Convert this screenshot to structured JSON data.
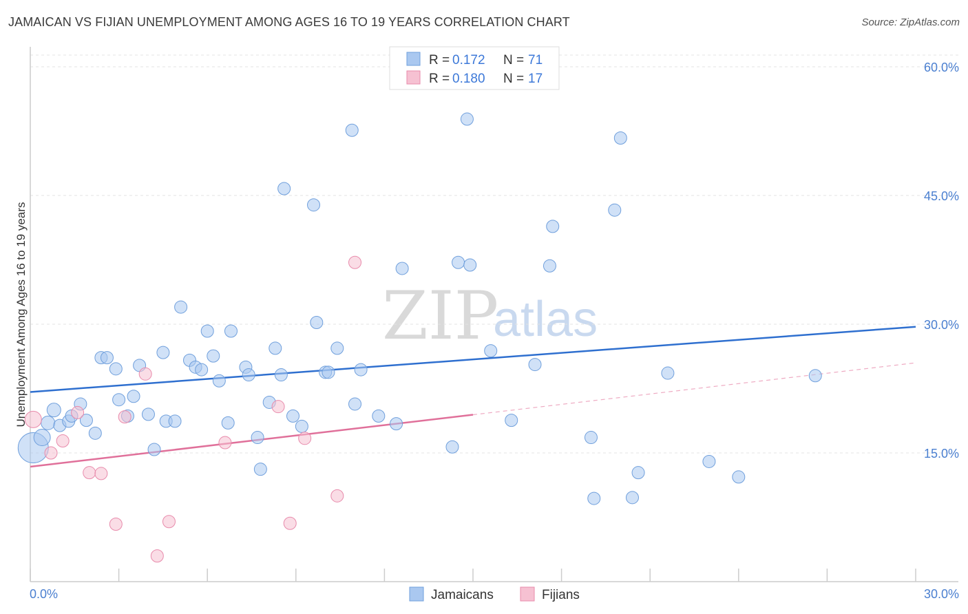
{
  "header": {
    "title": "JAMAICAN VS FIJIAN UNEMPLOYMENT AMONG AGES 16 TO 19 YEARS CORRELATION CHART",
    "source": "Source: ZipAtlas.com"
  },
  "watermark": {
    "zip": "ZIP",
    "atlas": "atlas"
  },
  "legend_top": {
    "rows": [
      {
        "r_label": "R =",
        "r_value": "0.172",
        "n_label": "N =",
        "n_value": "71",
        "color": "#aac8f0",
        "stroke": "#6f9fdc"
      },
      {
        "r_label": "R =",
        "r_value": "0.180",
        "n_label": "N =",
        "n_value": "17",
        "color": "#f6c1d2",
        "stroke": "#e88aab"
      }
    ]
  },
  "legend_bottom": {
    "items": [
      {
        "label": "Jamaicans",
        "color": "#aac8f0",
        "stroke": "#6f9fdc"
      },
      {
        "label": "Fijians",
        "color": "#f6c1d2",
        "stroke": "#e88aab"
      }
    ]
  },
  "chart_data": {
    "type": "scatter",
    "title": "JAMAICAN VS FIJIAN UNEMPLOYMENT AMONG AGES 16 TO 19 YEARS CORRELATION CHART",
    "xlabel": "",
    "ylabel": "Unemployment Among Ages 16 to 19 years",
    "xlim": [
      0,
      30
    ],
    "ylim": [
      0,
      60
    ],
    "x_tick_labels": [
      "0.0%",
      "30.0%"
    ],
    "y_ticks": [
      15,
      30,
      45,
      60
    ],
    "y_tick_labels": [
      "15.0%",
      "30.0%",
      "45.0%",
      "60.0%"
    ],
    "grid": true,
    "legend_placement": "top-center",
    "series": [
      {
        "name": "Jamaicans",
        "color": "#aac8f0",
        "stroke": "#6f9fdc",
        "trend": {
          "x": [
            0,
            30
          ],
          "y": [
            22.1,
            29.7
          ],
          "color": "#2e6fcf",
          "dashed_from": null
        },
        "points": [
          [
            0.1,
            15.6,
            22
          ],
          [
            0.4,
            16.8,
            12
          ],
          [
            0.6,
            18.5,
            10
          ],
          [
            0.8,
            20.0,
            10
          ],
          [
            1.0,
            18.2,
            9
          ],
          [
            1.3,
            18.7,
            9
          ],
          [
            1.4,
            19.3,
            9
          ],
          [
            1.7,
            20.7,
            9
          ],
          [
            1.9,
            18.8,
            9
          ],
          [
            2.2,
            17.3,
            9
          ],
          [
            2.4,
            26.1,
            9
          ],
          [
            2.6,
            26.1,
            9
          ],
          [
            2.9,
            24.8,
            9
          ],
          [
            3.0,
            21.2,
            9
          ],
          [
            3.3,
            19.3,
            9
          ],
          [
            3.5,
            21.6,
            9
          ],
          [
            3.7,
            25.2,
            9
          ],
          [
            4.0,
            19.5,
            9
          ],
          [
            4.2,
            15.4,
            9
          ],
          [
            4.5,
            26.7,
            9
          ],
          [
            4.6,
            18.7,
            9
          ],
          [
            4.9,
            18.7,
            9
          ],
          [
            5.1,
            32.0,
            9
          ],
          [
            5.4,
            25.8,
            9
          ],
          [
            5.6,
            25.0,
            9
          ],
          [
            5.8,
            24.7,
            9
          ],
          [
            6.0,
            29.2,
            9
          ],
          [
            6.2,
            26.3,
            9
          ],
          [
            6.4,
            23.4,
            9
          ],
          [
            6.7,
            18.5,
            9
          ],
          [
            6.8,
            29.2,
            9
          ],
          [
            7.3,
            25.0,
            9
          ],
          [
            7.4,
            24.1,
            9
          ],
          [
            7.7,
            16.8,
            9
          ],
          [
            7.8,
            13.1,
            9
          ],
          [
            8.1,
            20.9,
            9
          ],
          [
            8.3,
            27.2,
            9
          ],
          [
            8.5,
            24.1,
            9
          ],
          [
            8.6,
            45.8,
            9
          ],
          [
            8.9,
            19.3,
            9
          ],
          [
            9.2,
            18.1,
            9
          ],
          [
            9.6,
            43.9,
            9
          ],
          [
            9.7,
            30.2,
            9
          ],
          [
            10.0,
            24.4,
            9
          ],
          [
            10.1,
            24.4,
            9
          ],
          [
            10.4,
            27.2,
            9
          ],
          [
            10.9,
            52.6,
            9
          ],
          [
            11.0,
            20.7,
            9
          ],
          [
            11.2,
            24.7,
            9
          ],
          [
            11.8,
            19.3,
            9
          ],
          [
            12.4,
            18.4,
            9
          ],
          [
            12.6,
            36.5,
            9
          ],
          [
            14.3,
            15.7,
            9
          ],
          [
            14.5,
            37.2,
            9
          ],
          [
            14.8,
            53.9,
            9
          ],
          [
            14.9,
            36.9,
            9
          ],
          [
            15.6,
            26.9,
            9
          ],
          [
            16.3,
            18.8,
            9
          ],
          [
            17.1,
            25.3,
            9
          ],
          [
            17.6,
            36.8,
            9
          ],
          [
            17.7,
            41.4,
            9
          ],
          [
            19.0,
            16.8,
            9
          ],
          [
            19.1,
            9.7,
            9
          ],
          [
            19.8,
            43.3,
            9
          ],
          [
            20.0,
            51.7,
            9
          ],
          [
            20.4,
            9.8,
            9
          ],
          [
            20.6,
            12.7,
            9
          ],
          [
            21.6,
            24.3,
            9
          ],
          [
            23.0,
            14.0,
            9
          ],
          [
            24.0,
            12.2,
            9
          ],
          [
            26.6,
            24.0,
            9
          ]
        ]
      },
      {
        "name": "Fijians",
        "color": "#f6c1d2",
        "stroke": "#e88aab",
        "trend": {
          "x": [
            0,
            30
          ],
          "y": [
            13.4,
            25.5
          ],
          "solid_until": 15,
          "color": "#e0709a"
        },
        "points": [
          [
            0.1,
            18.9,
            12
          ],
          [
            0.7,
            15.0,
            9
          ],
          [
            1.1,
            16.4,
            9
          ],
          [
            1.6,
            19.7,
            9
          ],
          [
            2.0,
            12.7,
            9
          ],
          [
            2.4,
            12.6,
            9
          ],
          [
            2.9,
            6.7,
            9
          ],
          [
            3.2,
            19.2,
            9
          ],
          [
            3.9,
            24.2,
            9
          ],
          [
            4.3,
            3.0,
            9
          ],
          [
            4.7,
            7.0,
            9
          ],
          [
            6.6,
            16.2,
            9
          ],
          [
            8.4,
            20.4,
            9
          ],
          [
            8.8,
            6.8,
            9
          ],
          [
            9.3,
            16.7,
            9
          ],
          [
            10.4,
            10.0,
            9
          ],
          [
            11.0,
            37.2,
            9
          ]
        ]
      }
    ]
  }
}
